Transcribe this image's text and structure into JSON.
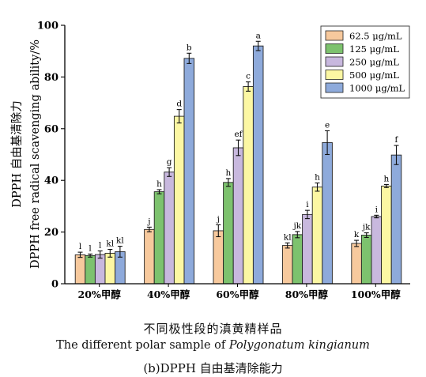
{
  "chart_data": {
    "type": "bar",
    "ylabel_line1": "DPPH 自由基清除力",
    "ylabel_line2": "DPPH free radical scavenging ability/%",
    "ylim": [
      0,
      100
    ],
    "yticks": [
      "0",
      "20",
      "40",
      "60",
      "80",
      "100"
    ],
    "categories": [
      "20%甲醇",
      "40%甲醇",
      "60%甲醇",
      "80%甲醇",
      "100%甲醇"
    ],
    "series": [
      {
        "name": "62.5 μg/mL",
        "color": "#f7c99d",
        "values": [
          11.2,
          21.0,
          20.5,
          14.8,
          15.6
        ],
        "errors": [
          1.0,
          0.9,
          2.3,
          1.0,
          1.2
        ],
        "letters": [
          "l",
          "j",
          "j",
          "kl",
          "k"
        ]
      },
      {
        "name": "125 μg/mL",
        "color": "#7dc26e",
        "values": [
          10.9,
          35.6,
          39.2,
          19.0,
          18.8
        ],
        "errors": [
          0.6,
          0.8,
          1.5,
          1.2,
          0.9
        ],
        "letters": [
          "l",
          "h",
          "h",
          "jk",
          "jk"
        ]
      },
      {
        "name": "250 μg/mL",
        "color": "#c8b8de",
        "values": [
          11.3,
          43.2,
          52.6,
          26.8,
          26.0
        ],
        "errors": [
          1.4,
          1.7,
          3.0,
          1.6,
          0.5
        ],
        "letters": [
          "l",
          "g",
          "ef",
          "i",
          "i"
        ]
      },
      {
        "name": "500 μg/mL",
        "color": "#fcf7a3",
        "values": [
          11.8,
          64.8,
          76.3,
          37.4,
          37.8
        ],
        "errors": [
          1.5,
          2.6,
          1.8,
          1.6,
          0.6
        ],
        "letters": [
          "kl",
          "d",
          "c",
          "h",
          "h"
        ]
      },
      {
        "name": "1000 μg/mL",
        "color": "#8eaadb",
        "values": [
          12.4,
          87.2,
          92.0,
          54.6,
          49.8
        ],
        "errors": [
          2.1,
          2.0,
          1.8,
          4.6,
          3.7
        ],
        "letters": [
          "kl",
          "b",
          "a",
          "e",
          "f"
        ]
      }
    ],
    "legend_position": "top-right"
  },
  "captions": {
    "line1": "不同极性段的滇黄精样品",
    "line2_prefix": "The different polar sample of ",
    "line2_italic": "Polygonatum kingianum",
    "line3": "(b)DPPH 自由基清除能力"
  }
}
